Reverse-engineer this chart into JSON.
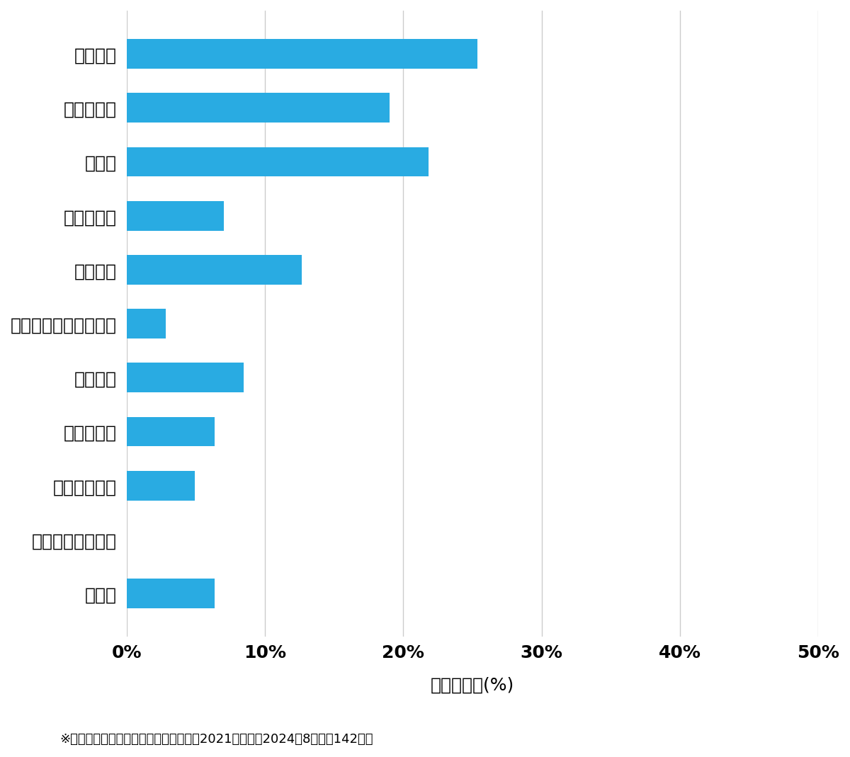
{
  "categories": [
    "玄関開錠",
    "玄関鍵交換",
    "車開錠",
    "その他開錠",
    "車鍵作成",
    "イモビ付国産車鍵作成",
    "金庫開錠",
    "玄関鍵作成",
    "その他鍵作成",
    "スーツケース開錠",
    "その他"
  ],
  "values": [
    25.35,
    19.01,
    21.83,
    7.04,
    12.68,
    2.82,
    8.45,
    6.34,
    4.93,
    0.0,
    6.34
  ],
  "bar_color": "#29ABE2",
  "background_color": "#FFFFFF",
  "xlabel": "件数の割合(%)",
  "xlim": [
    0,
    50
  ],
  "xticks": [
    0,
    10,
    20,
    30,
    40,
    50
  ],
  "xtick_labels": [
    "0%",
    "10%",
    "20%",
    "30%",
    "40%",
    "50%"
  ],
  "grid_color": "#CCCCCC",
  "footnote": "※弊社受付の案件を対象に集計（期間：2021年１月〜2024年8月、計142件）",
  "label_fontsize": 18,
  "tick_fontsize": 18,
  "xlabel_fontsize": 18,
  "footnote_fontsize": 13
}
